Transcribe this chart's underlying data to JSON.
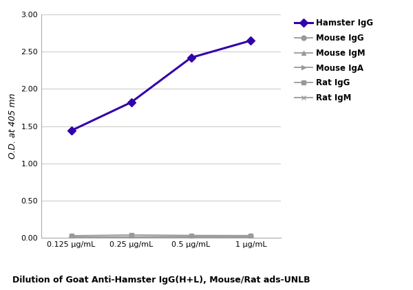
{
  "x_labels": [
    "0.125 μg/mL",
    "0.25 μg/mL",
    "0.5 μg/mL",
    "1 μg/mL"
  ],
  "x_values": [
    0,
    1,
    2,
    3
  ],
  "series": [
    {
      "label": "Hamster IgG",
      "values": [
        1.44,
        1.82,
        2.42,
        2.65
      ],
      "color": "#3300AA",
      "marker": "D",
      "markersize": 6,
      "linewidth": 2.2,
      "zorder": 5,
      "markerfacecolor": "#3300AA"
    },
    {
      "label": "Mouse IgG",
      "values": [
        0.012,
        0.012,
        0.012,
        0.015
      ],
      "color": "#999999",
      "marker": "o",
      "markersize": 5,
      "linewidth": 1.3,
      "zorder": 4,
      "markerfacecolor": "#999999"
    },
    {
      "label": "Mouse IgM",
      "values": [
        0.012,
        0.012,
        0.018,
        0.014
      ],
      "color": "#999999",
      "marker": "^",
      "markersize": 5,
      "linewidth": 1.3,
      "zorder": 3,
      "markerfacecolor": "#999999"
    },
    {
      "label": "Mouse IgA",
      "values": [
        0.008,
        0.008,
        0.01,
        0.01
      ],
      "color": "#999999",
      "marker": ">",
      "markersize": 5,
      "linewidth": 1.3,
      "zorder": 3,
      "markerfacecolor": "#999999"
    },
    {
      "label": "Rat IgG",
      "values": [
        0.028,
        0.038,
        0.032,
        0.03
      ],
      "color": "#999999",
      "marker": "s",
      "markersize": 5,
      "linewidth": 1.3,
      "zorder": 3,
      "markerfacecolor": "#999999"
    },
    {
      "label": "Rat IgM",
      "values": [
        0.006,
        0.006,
        0.006,
        0.01
      ],
      "color": "#999999",
      "marker": "x",
      "markersize": 5,
      "linewidth": 1.3,
      "zorder": 3,
      "markerfacecolor": "#999999"
    }
  ],
  "ylabel": "O.D. at 405 mn",
  "xlabel": "Dilution of Goat Anti-Hamster IgG(H+L), Mouse/Rat ads-UNLB",
  "ylim": [
    0,
    3.0
  ],
  "yticks": [
    0.0,
    0.5,
    1.0,
    1.5,
    2.0,
    2.5,
    3.0
  ],
  "background_color": "#ffffff",
  "grid_color": "#cccccc",
  "axis_label_fontsize": 9,
  "tick_fontsize": 8,
  "legend_fontsize": 8.5
}
